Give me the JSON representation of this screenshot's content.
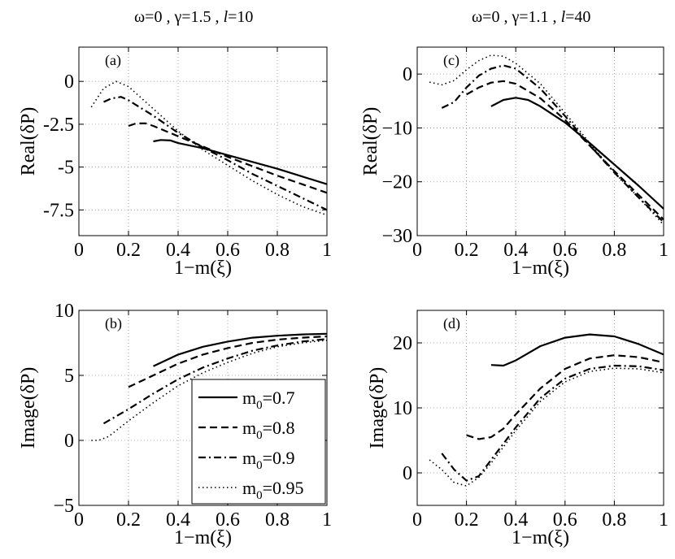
{
  "column_titles": {
    "left": {
      "pre": "ω=0 , γ=1.5 , ",
      "l": "l",
      "post": "=10"
    },
    "right": {
      "pre": "ω=0 , γ=1.1 , ",
      "l": "l",
      "post": "=40"
    }
  },
  "legend": {
    "entries": [
      {
        "label_main": "m",
        "label_sub": "0",
        "label_rest": "=0.7",
        "dash": "solid"
      },
      {
        "label_main": "m",
        "label_sub": "0",
        "label_rest": "=0.8",
        "dash": "dashed"
      },
      {
        "label_main": "m",
        "label_sub": "0",
        "label_rest": "=0.9",
        "dash": "dashdot"
      },
      {
        "label_main": "m",
        "label_sub": "0",
        "label_rest": "=0.95",
        "dash": "dotted"
      }
    ]
  },
  "chart_data": [
    {
      "id": "a",
      "panel_label": "(a)",
      "type": "line",
      "xlabel": "1−m(ξ)",
      "ylabel": "Real(δP)",
      "xlim": [
        0,
        1
      ],
      "ylim": [
        -9,
        2
      ],
      "xticks": [
        0,
        0.2,
        0.4,
        0.6,
        0.8,
        1
      ],
      "xtick_labels": [
        "0",
        "0.2",
        "0.4",
        "0.6",
        "0.8",
        "1"
      ],
      "yticks": [
        0,
        -2.5,
        -5,
        -7.5
      ],
      "ytick_labels": [
        "0",
        "-2.5",
        "-5",
        "-7.5"
      ],
      "grid": true,
      "series": [
        {
          "dash": "solid",
          "x": [
            0.3,
            0.33,
            0.37,
            0.4,
            0.5,
            0.6,
            0.7,
            0.8,
            0.9,
            1.0
          ],
          "y": [
            -3.5,
            -3.42,
            -3.45,
            -3.6,
            -3.9,
            -4.3,
            -4.7,
            -5.1,
            -5.55,
            -6.0
          ]
        },
        {
          "dash": "dashed",
          "x": [
            0.2,
            0.23,
            0.27,
            0.3,
            0.4,
            0.5,
            0.6,
            0.7,
            0.8,
            0.9,
            1.0
          ],
          "y": [
            -2.6,
            -2.45,
            -2.45,
            -2.6,
            -3.2,
            -3.8,
            -4.4,
            -4.95,
            -5.5,
            -6.0,
            -6.5
          ]
        },
        {
          "dash": "dashdot",
          "x": [
            0.1,
            0.13,
            0.17,
            0.2,
            0.3,
            0.4,
            0.5,
            0.6,
            0.7,
            0.8,
            0.9,
            1.0
          ],
          "y": [
            -1.2,
            -1.0,
            -0.9,
            -1.1,
            -2.0,
            -3.0,
            -3.85,
            -4.6,
            -5.4,
            -6.1,
            -6.8,
            -7.5
          ]
        },
        {
          "dash": "dotted",
          "x": [
            0.05,
            0.1,
            0.15,
            0.2,
            0.3,
            0.4,
            0.5,
            0.6,
            0.7,
            0.8,
            0.9,
            1.0
          ],
          "y": [
            -1.5,
            -0.4,
            0.0,
            -0.3,
            -1.6,
            -2.9,
            -4.0,
            -4.9,
            -5.8,
            -6.6,
            -7.3,
            -7.8
          ]
        }
      ]
    },
    {
      "id": "b",
      "panel_label": "(b)",
      "type": "line",
      "xlabel": "1−m(ξ)",
      "ylabel": "Image(δP)",
      "xlim": [
        0,
        1
      ],
      "ylim": [
        -5,
        10
      ],
      "xticks": [
        0,
        0.2,
        0.4,
        0.6,
        0.8,
        1
      ],
      "xtick_labels": [
        "0",
        "0.2",
        "0.4",
        "0.6",
        "0.8",
        "1"
      ],
      "yticks": [
        -5,
        0,
        5,
        10
      ],
      "ytick_labels": [
        "−5",
        "0",
        "5",
        "10"
      ],
      "grid": true,
      "series": [
        {
          "dash": "solid",
          "x": [
            0.3,
            0.4,
            0.5,
            0.6,
            0.7,
            0.8,
            0.9,
            1.0
          ],
          "y": [
            5.7,
            6.6,
            7.2,
            7.6,
            7.9,
            8.05,
            8.15,
            8.2
          ]
        },
        {
          "dash": "dashed",
          "x": [
            0.2,
            0.3,
            0.4,
            0.5,
            0.6,
            0.7,
            0.8,
            0.9,
            1.0
          ],
          "y": [
            4.1,
            5.0,
            5.9,
            6.6,
            7.1,
            7.5,
            7.75,
            7.9,
            8.0
          ]
        },
        {
          "dash": "dashdot",
          "x": [
            0.1,
            0.2,
            0.3,
            0.4,
            0.5,
            0.6,
            0.7,
            0.8,
            0.9,
            1.0
          ],
          "y": [
            1.3,
            2.4,
            3.6,
            4.7,
            5.6,
            6.3,
            6.9,
            7.3,
            7.6,
            7.8
          ]
        },
        {
          "dash": "dotted",
          "x": [
            0.05,
            0.08,
            0.12,
            0.2,
            0.3,
            0.4,
            0.5,
            0.6,
            0.7,
            0.8,
            0.9,
            1.0
          ],
          "y": [
            0.0,
            0.0,
            0.3,
            1.5,
            2.9,
            4.2,
            5.2,
            6.0,
            6.7,
            7.2,
            7.5,
            7.7
          ]
        }
      ]
    },
    {
      "id": "c",
      "panel_label": "(c)",
      "type": "line",
      "xlabel": "1−m(ξ)",
      "ylabel": "Real(δP)",
      "xlim": [
        0,
        1
      ],
      "ylim": [
        -30,
        5
      ],
      "xticks": [
        0,
        0.2,
        0.4,
        0.6,
        0.8,
        1
      ],
      "xtick_labels": [
        "0",
        "0.2",
        "0.4",
        "0.6",
        "0.8",
        "1"
      ],
      "yticks": [
        0,
        -10,
        -20,
        -30
      ],
      "ytick_labels": [
        "0",
        "−10",
        "−20",
        "−30"
      ],
      "grid": true,
      "series": [
        {
          "dash": "solid",
          "x": [
            0.3,
            0.35,
            0.4,
            0.45,
            0.5,
            0.6,
            0.7,
            0.8,
            0.9,
            1.0
          ],
          "y": [
            -6.0,
            -4.8,
            -4.4,
            -4.8,
            -6.0,
            -9.0,
            -12.8,
            -16.8,
            -20.8,
            -25.0
          ]
        },
        {
          "dash": "dashed",
          "x": [
            0.2,
            0.25,
            0.3,
            0.35,
            0.4,
            0.5,
            0.6,
            0.7,
            0.8,
            0.9,
            1.0
          ],
          "y": [
            -3.8,
            -2.5,
            -1.6,
            -1.3,
            -1.8,
            -4.5,
            -8.5,
            -13.3,
            -18.0,
            -22.5,
            -27.0
          ]
        },
        {
          "dash": "dashdot",
          "x": [
            0.1,
            0.15,
            0.2,
            0.25,
            0.3,
            0.35,
            0.4,
            0.5,
            0.6,
            0.7,
            0.8,
            0.9,
            1.0
          ],
          "y": [
            -6.3,
            -5.2,
            -2.5,
            -0.3,
            1.0,
            1.6,
            1.0,
            -2.7,
            -7.8,
            -13.2,
            -18.3,
            -23.0,
            -27.5
          ]
        },
        {
          "dash": "dotted",
          "x": [
            0.05,
            0.1,
            0.15,
            0.2,
            0.25,
            0.3,
            0.35,
            0.4,
            0.5,
            0.6,
            0.7,
            0.8,
            0.9,
            1.0
          ],
          "y": [
            -1.5,
            -2.0,
            -1.2,
            0.8,
            2.5,
            3.5,
            3.3,
            2.0,
            -1.8,
            -7.2,
            -12.8,
            -18.3,
            -23.0,
            -28.0
          ]
        }
      ]
    },
    {
      "id": "d",
      "panel_label": "(d)",
      "type": "line",
      "xlabel": "1−m(ξ)",
      "ylabel": "Image(δP)",
      "xlim": [
        0,
        1
      ],
      "ylim": [
        -5,
        25
      ],
      "xticks": [
        0,
        0.2,
        0.4,
        0.6,
        0.8,
        1
      ],
      "xtick_labels": [
        "0",
        "0.2",
        "0.4",
        "0.6",
        "0.8",
        "1"
      ],
      "yticks": [
        0,
        10,
        20
      ],
      "ytick_labels": [
        "0",
        "10",
        "20"
      ],
      "grid": true,
      "series": [
        {
          "dash": "solid",
          "x": [
            0.3,
            0.35,
            0.4,
            0.5,
            0.6,
            0.7,
            0.8,
            0.9,
            1.0
          ],
          "y": [
            16.6,
            16.5,
            17.3,
            19.5,
            20.8,
            21.3,
            21.0,
            19.8,
            18.2
          ]
        },
        {
          "dash": "dashed",
          "x": [
            0.2,
            0.25,
            0.3,
            0.35,
            0.4,
            0.5,
            0.6,
            0.7,
            0.8,
            0.9,
            1.0
          ],
          "y": [
            5.8,
            5.2,
            5.5,
            6.8,
            9.0,
            13.0,
            16.0,
            17.6,
            18.1,
            17.8,
            17.0
          ]
        },
        {
          "dash": "dashdot",
          "x": [
            0.1,
            0.15,
            0.2,
            0.25,
            0.3,
            0.4,
            0.5,
            0.6,
            0.7,
            0.8,
            0.9,
            1.0
          ],
          "y": [
            3.0,
            0.5,
            -1.2,
            -0.5,
            2.0,
            7.0,
            11.5,
            14.5,
            16.0,
            16.5,
            16.4,
            15.8
          ]
        },
        {
          "dash": "dotted",
          "x": [
            0.05,
            0.1,
            0.15,
            0.2,
            0.25,
            0.3,
            0.4,
            0.5,
            0.6,
            0.7,
            0.8,
            0.9,
            1.0
          ],
          "y": [
            2.0,
            0.5,
            -1.5,
            -2.0,
            -0.7,
            1.5,
            6.5,
            11.0,
            14.0,
            15.6,
            16.1,
            16.0,
            15.4
          ]
        }
      ]
    }
  ]
}
